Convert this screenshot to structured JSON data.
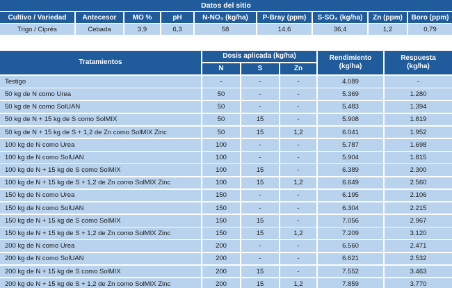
{
  "site": {
    "title": "Datos del sitio",
    "headers": [
      "Cultivo / Variedad",
      "Antecesor",
      "MO %",
      "pH",
      "N-NO₃ (kg/ha)",
      "P-Bray (ppm)",
      "S-SO₄ (kg/ha)",
      "Zn (ppm)",
      "Boro (ppm)"
    ],
    "values": [
      "Trigo / Ciprés",
      "Cebada",
      "3,9",
      "6,3",
      "58",
      "14,6",
      "36,4",
      "1,2",
      "0,79"
    ]
  },
  "treatments": {
    "header": {
      "tratamientos": "Tratamientos",
      "dosis": "Dosis aplicada (kg/ha)",
      "n": "N",
      "s": "S",
      "zn": "Zn",
      "rendimiento": "Rendimiento\n(kg/ha)",
      "respuesta": "Respuesta\n(kg/ha)"
    },
    "rows": [
      [
        "Testigo",
        "-",
        "-",
        "-",
        "4.089",
        "-"
      ],
      [
        "50 kg de N como Urea",
        "50",
        "-",
        "-",
        "5.369",
        "1.280"
      ],
      [
        "50 kg de N como SolUAN",
        "50",
        "-",
        "-",
        "5.483",
        "1.394"
      ],
      [
        "50 kg de N + 15 kg de S como SolMIX",
        "50",
        "15",
        "-",
        "5.908",
        "1.819"
      ],
      [
        "50 kg de N + 15 kg de S + 1,2 de Zn como SolMIX Zinc",
        "50",
        "15",
        "1,2",
        "6.041",
        "1.952"
      ],
      [
        "100 kg de N como Urea",
        "100",
        "-",
        "-",
        "5.787",
        "1.698"
      ],
      [
        "100 kg de N como SolUAN",
        "100",
        "-",
        "-",
        "5.904",
        "1.815"
      ],
      [
        "100 kg de N + 15 kg de S como SolMIX",
        "100",
        "15",
        "-",
        "6.389",
        "2.300"
      ],
      [
        "100 kg de N + 15 kg de S + 1,2 de Zn como SolMIX Zinc",
        "100",
        "15",
        "1,2",
        "6.649",
        "2.560"
      ],
      [
        "150 kg de N como Urea",
        "150",
        "-",
        "-",
        "6.195",
        "2.106"
      ],
      [
        "150 kg de N como SolUAN",
        "150",
        "-",
        "-",
        "6.304",
        "2.215"
      ],
      [
        "150 kg de N + 15 kg de S como SolMIX",
        "150",
        "15",
        "-",
        "7.056",
        "2.967"
      ],
      [
        "150 kg de N + 15 kg de S + 1,2 de Zn como SolMIX Zinc",
        "150",
        "15",
        "1,2",
        "7.209",
        "3.120"
      ],
      [
        "200 kg de N como Urea",
        "200",
        "-",
        "-",
        "6.560",
        "2.471"
      ],
      [
        "200 kg de N como SolUAN",
        "200",
        "-",
        "-",
        "6.621",
        "2.532"
      ],
      [
        "200 kg de N + 15 kg de S como SolMIX",
        "200",
        "15",
        "-",
        "7.552",
        "3.463"
      ],
      [
        "200 kg de N + 15 kg de S + 1,2 de Zn como SolMIX Zinc",
        "200",
        "15",
        "1,2",
        "7.859",
        "3.770"
      ]
    ]
  }
}
